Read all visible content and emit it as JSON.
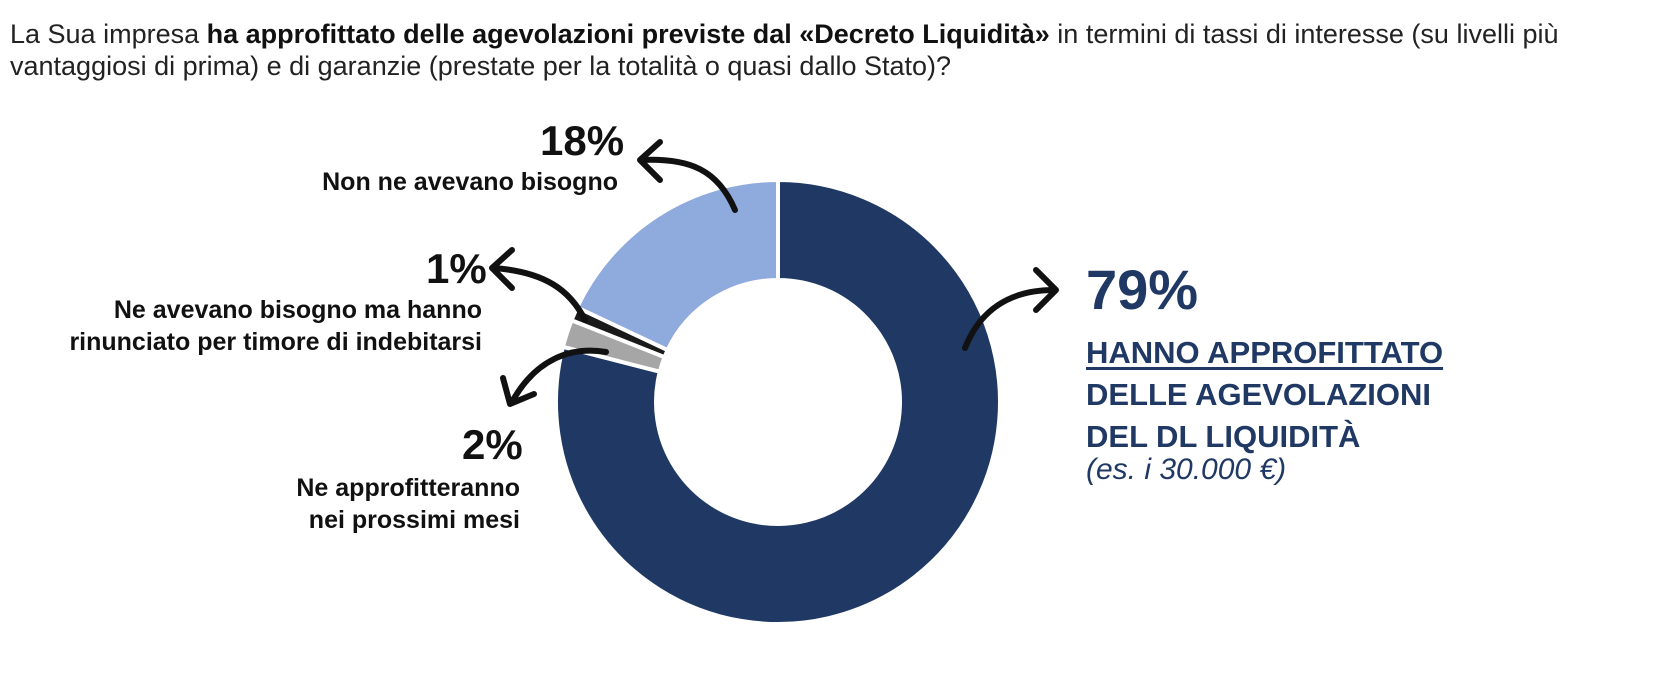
{
  "question": {
    "part1": "La Sua impresa ",
    "bold": "ha approfittato delle agevolazioni previste dal «Decreto Liquidità»",
    "part2": " in termini di tassi di interesse (su livelli più vantaggiosi di prima) e di garanzie (prestate per la totalità o quasi dallo Stato)?"
  },
  "chart_data": {
    "type": "pie",
    "donut": true,
    "slices": [
      {
        "value": 79,
        "pct_label": "79%",
        "label_lines": [
          "HANNO APPROFITTATO",
          "DELLE AGEVOLAZIONI",
          "DEL DL LIQUIDITÀ"
        ],
        "note": "(es. i 30.000 €)",
        "color": "#1f3864"
      },
      {
        "value": 2,
        "pct_label": "2%",
        "label_lines": [
          "Ne approfitteranno",
          "nei prossimi mesi"
        ],
        "color": "#a6a6a6"
      },
      {
        "value": 1,
        "pct_label": "1%",
        "label_lines": [
          "Ne avevano bisogno ma hanno",
          "rinunciato per timore di indebitarsi"
        ],
        "color": "#1a1a1a"
      },
      {
        "value": 18,
        "pct_label": "18%",
        "label_lines": [
          "Non ne avevano bisogno"
        ],
        "color": "#8faadc"
      }
    ]
  }
}
